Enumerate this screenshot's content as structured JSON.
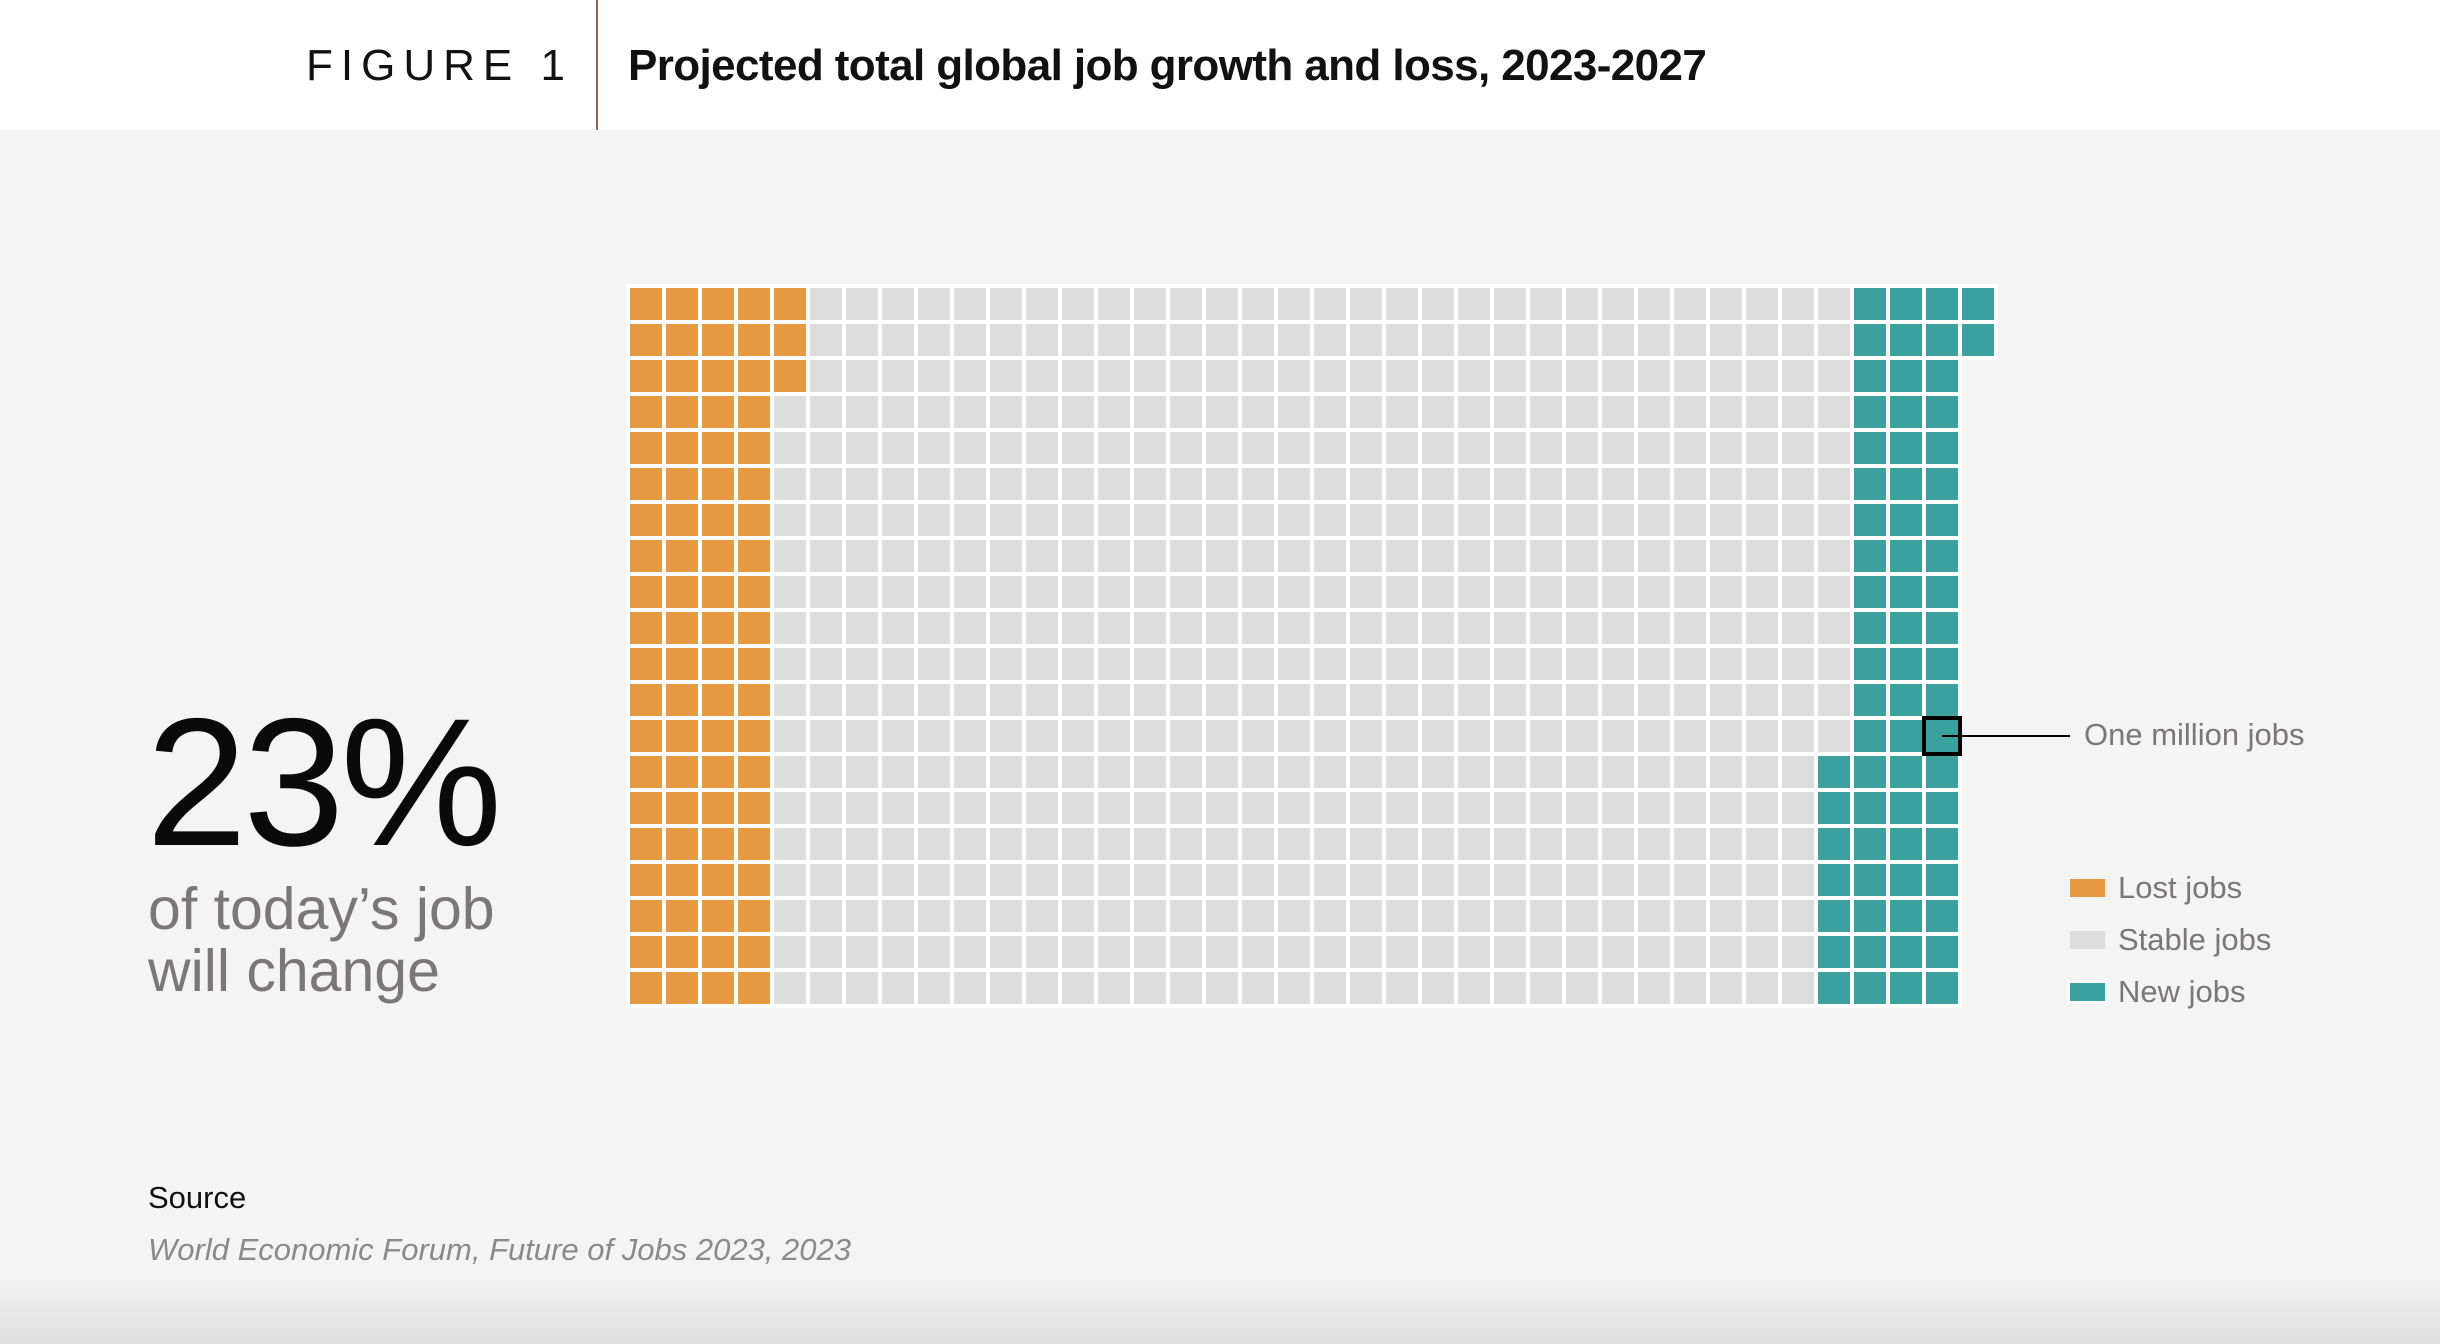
{
  "header": {
    "figure_label": "FIGURE 1",
    "title": "Projected total global job growth and loss, 2023-2027"
  },
  "highlight": {
    "value": "23%",
    "line1": "of today’s job",
    "line2": "will change"
  },
  "annotation": {
    "label": "One million jobs"
  },
  "source": {
    "label": "Source",
    "text": "World Economic Forum, Future of Jobs 2023, 2023"
  },
  "colors": {
    "lost": "#e69b43",
    "stable": "#dddddd",
    "new": "#3aa19e",
    "grid_gap": "#ffffff"
  },
  "chart_data": {
    "type": "waffle",
    "title": "Projected total global job growth and loss, 2023-2027",
    "unit": "One million jobs",
    "legend": [
      "Lost jobs",
      "Stable jobs",
      "New jobs"
    ],
    "legend_position": "right",
    "categories": [
      "Lost jobs",
      "Stable jobs",
      "New jobs"
    ],
    "values": [
      83,
      590,
      69
    ],
    "rows": [
      {
        "lost": 5,
        "stable": 29,
        "new": 4
      },
      {
        "lost": 5,
        "stable": 29,
        "new": 4
      },
      {
        "lost": 5,
        "stable": 29,
        "new": 3
      },
      {
        "lost": 4,
        "stable": 30,
        "new": 3
      },
      {
        "lost": 4,
        "stable": 30,
        "new": 3
      },
      {
        "lost": 4,
        "stable": 30,
        "new": 3
      },
      {
        "lost": 4,
        "stable": 30,
        "new": 3
      },
      {
        "lost": 4,
        "stable": 30,
        "new": 3
      },
      {
        "lost": 4,
        "stable": 30,
        "new": 3
      },
      {
        "lost": 4,
        "stable": 30,
        "new": 3
      },
      {
        "lost": 4,
        "stable": 30,
        "new": 3
      },
      {
        "lost": 4,
        "stable": 30,
        "new": 3
      },
      {
        "lost": 4,
        "stable": 30,
        "new": 3
      },
      {
        "lost": 4,
        "stable": 29,
        "new": 4
      },
      {
        "lost": 4,
        "stable": 29,
        "new": 4
      },
      {
        "lost": 4,
        "stable": 29,
        "new": 4
      },
      {
        "lost": 4,
        "stable": 29,
        "new": 4
      },
      {
        "lost": 4,
        "stable": 29,
        "new": 4
      },
      {
        "lost": 4,
        "stable": 29,
        "new": 4
      },
      {
        "lost": 4,
        "stable": 29,
        "new": 4
      }
    ],
    "highlighted_cell": {
      "row": 13,
      "column": 37
    }
  }
}
